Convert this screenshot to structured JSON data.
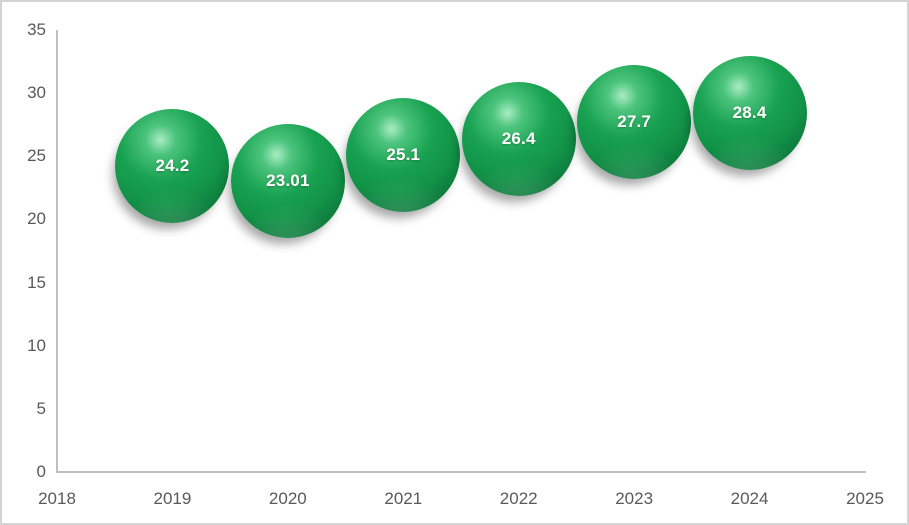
{
  "chart_data": {
    "type": "bubble",
    "title": "",
    "x": [
      2019,
      2020,
      2021,
      2022,
      2023,
      2024
    ],
    "values": [
      24.2,
      23.01,
      25.1,
      26.4,
      27.7,
      28.4
    ],
    "point_labels": [
      "24.2",
      "23.01",
      "25.1",
      "26.4",
      "27.7",
      "28.4"
    ],
    "xlim": [
      2018,
      2025
    ],
    "ylim": [
      0,
      35
    ],
    "x_ticks": [
      "2018",
      "2019",
      "2020",
      "2021",
      "2022",
      "2023",
      "2024",
      "2025"
    ],
    "x_tick_values": [
      2018,
      2019,
      2020,
      2021,
      2022,
      2023,
      2024,
      2025
    ],
    "y_ticks": [
      "0",
      "5",
      "10",
      "15",
      "20",
      "25",
      "30",
      "35"
    ],
    "y_tick_values": [
      0,
      5,
      10,
      15,
      20,
      25,
      30,
      35
    ],
    "grid": false,
    "legend": "none",
    "colors": {
      "bubble_base": "#18a251",
      "bubble_mid": "#129348",
      "bubble_highlight": "#a9ecc4",
      "bubble_light": "#4cc47d",
      "bubble_dark": "#0c7138",
      "bubble_rim": "#0e7a3d",
      "data_label": "#ffffff",
      "axis_line": "#bfbfbf",
      "tick_label": "#595959",
      "frame_border": "#d4d4d4",
      "background": "#ffffff"
    }
  }
}
